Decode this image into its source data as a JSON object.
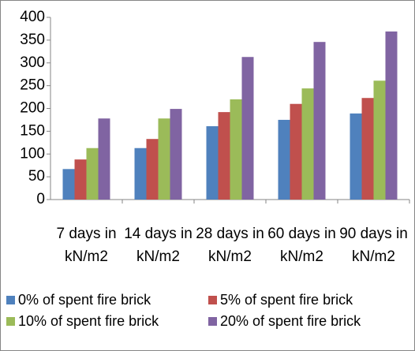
{
  "chart_data": {
    "type": "bar",
    "categories": [
      "7 days in kN/m2",
      "14 days in kN/m2",
      "28 days in kN/m2",
      "60 days in kN/m2",
      "90 days in kN/m2"
    ],
    "series": [
      {
        "name": "0% of spent fire brick",
        "color": "#4f81bd",
        "values": [
          67,
          113,
          161,
          175,
          189
        ]
      },
      {
        "name": "5% of spent fire brick",
        "color": "#c0504d",
        "values": [
          88,
          133,
          192,
          210,
          223
        ]
      },
      {
        "name": "10% of spent fire brick",
        "color": "#9bbb59",
        "values": [
          113,
          178,
          220,
          244,
          261
        ]
      },
      {
        "name": "20% of spent fire brick",
        "color": "#8064a2",
        "values": [
          178,
          199,
          313,
          346,
          369
        ]
      }
    ],
    "ylim": [
      0,
      400
    ],
    "yticks": [
      0,
      50,
      100,
      150,
      200,
      250,
      300,
      350,
      400
    ],
    "legend": "bottom"
  }
}
